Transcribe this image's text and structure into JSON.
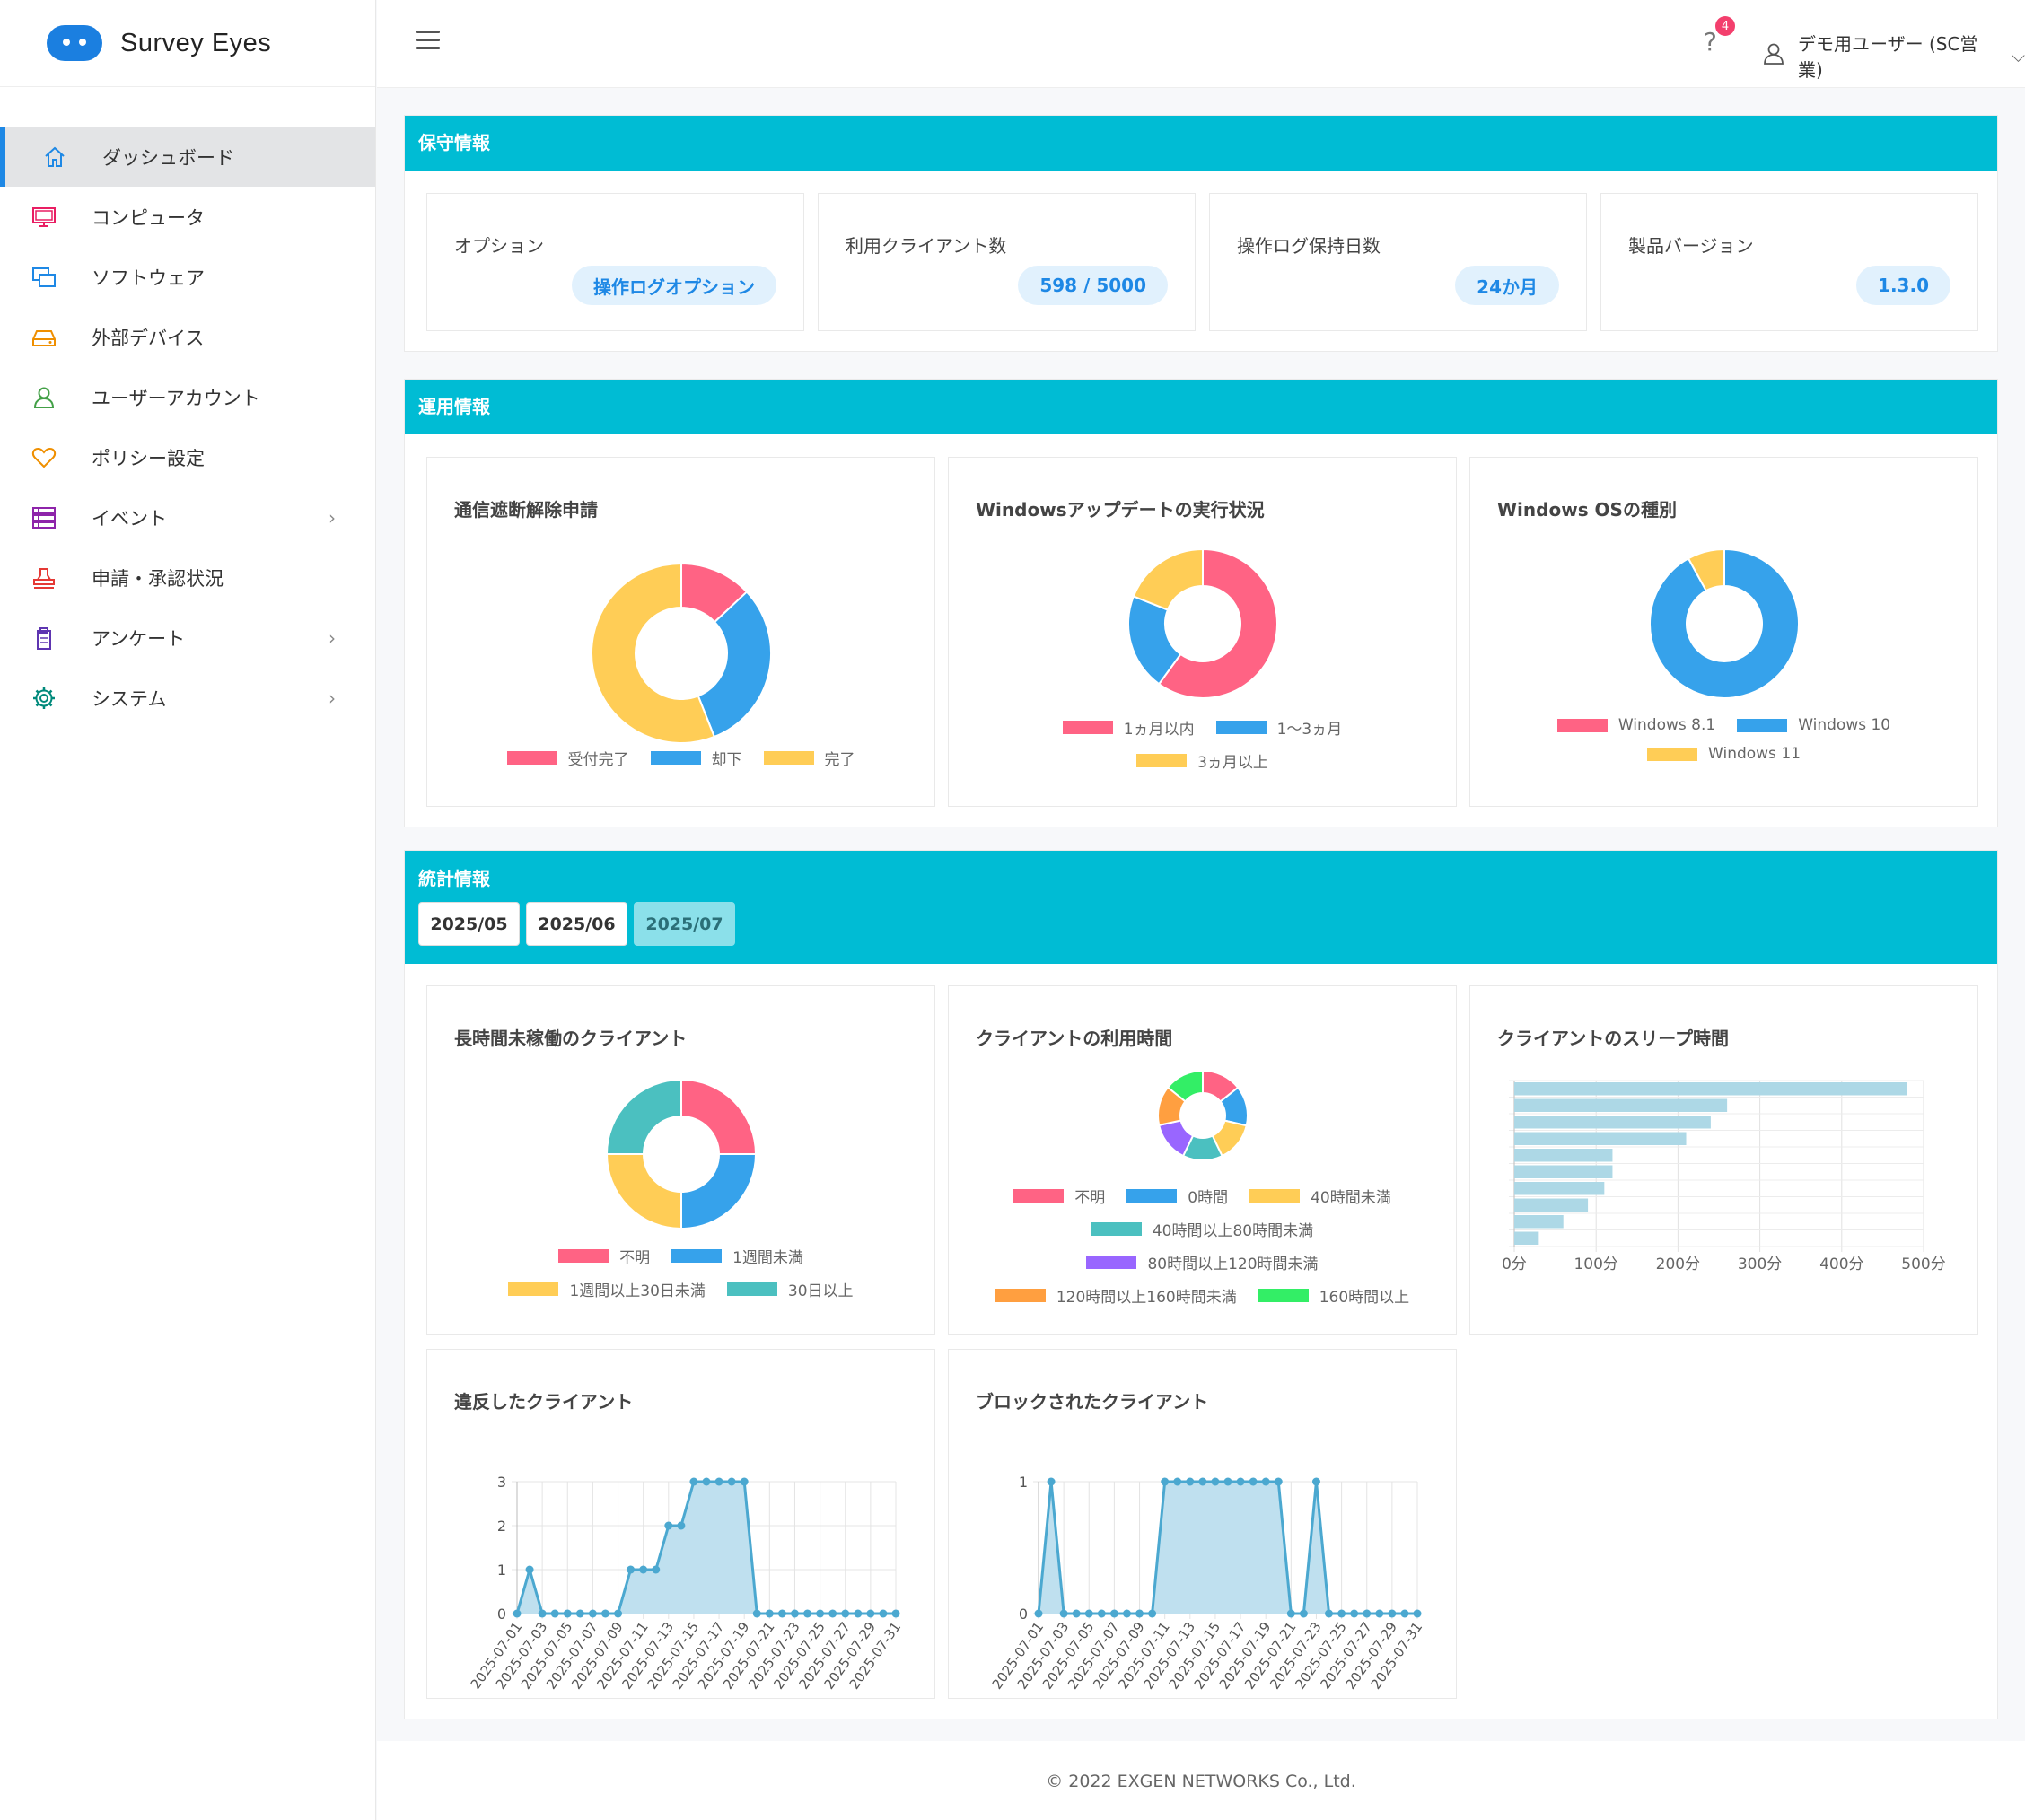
{
  "app": {
    "logo_text": "Survey Eyes"
  },
  "topbar": {
    "help_glyph": "?",
    "notification_count": "4",
    "user_name": "デモ用ユーザー (SC営業)"
  },
  "sidebar": {
    "items": [
      {
        "label": "ダッシュボード",
        "icon": "home-icon",
        "color": "#1e88e5"
      },
      {
        "label": "コンピュータ",
        "icon": "monitor-icon",
        "color": "#e91e63"
      },
      {
        "label": "ソフトウェア",
        "icon": "windows-icon",
        "color": "#1e88e5"
      },
      {
        "label": "外部デバイス",
        "icon": "drive-icon",
        "color": "#ef8f00"
      },
      {
        "label": "ユーザーアカウント",
        "icon": "user-icon",
        "color": "#43a047"
      },
      {
        "label": "ポリシー設定",
        "icon": "heart-icon",
        "color": "#ef8f00"
      },
      {
        "label": "イベント",
        "icon": "list-icon",
        "color": "#8e24aa"
      },
      {
        "label": "申請・承認状況",
        "icon": "stamp-icon",
        "color": "#e53935"
      },
      {
        "label": "アンケート",
        "icon": "clipboard-icon",
        "color": "#5e35b1"
      },
      {
        "label": "システム",
        "icon": "gear-icon",
        "color": "#00897b"
      }
    ]
  },
  "maintenance": {
    "title": "保守情報",
    "cards": [
      {
        "label": "オプション",
        "value": "操作ログオプション"
      },
      {
        "label": "利用クライアント数",
        "value": "598 / 5000"
      },
      {
        "label": "操作ログ保持日数",
        "value": "24か月"
      },
      {
        "label": "製品バージョン",
        "value": "1.3.0"
      }
    ]
  },
  "operations": {
    "title": "運用情報"
  },
  "statistics": {
    "title": "統計情報",
    "tabs": [
      "2025/05",
      "2025/06",
      "2025/07"
    ],
    "active_tab": "2025/07"
  },
  "footer": {
    "text": "© 2022 EXGEN NETWORKS Co., Ltd."
  },
  "chart_data": [
    {
      "id": "network-block",
      "type": "pie",
      "title": "通信遮断解除申請",
      "labels": [
        "受付完了",
        "却下",
        "完了"
      ],
      "values": [
        13,
        31,
        56
      ],
      "colors": [
        "#ff6384",
        "#36a2eb",
        "#ffcd56"
      ]
    },
    {
      "id": "windows-update",
      "type": "pie",
      "title": "Windowsアップデートの実行状況",
      "labels": [
        "1ヵ月以内",
        "1〜3ヵ月",
        "3ヵ月以上"
      ],
      "values": [
        60,
        21,
        19
      ],
      "colors": [
        "#ff6384",
        "#36a2eb",
        "#ffcd56"
      ]
    },
    {
      "id": "windows-os",
      "type": "pie",
      "title": "Windows OSの種別",
      "labels": [
        "Windows 8.1",
        "Windows 10",
        "Windows 11"
      ],
      "values": [
        0,
        92,
        8
      ],
      "colors": [
        "#ff6384",
        "#36a2eb",
        "#ffcd56"
      ]
    },
    {
      "id": "inactive-clients",
      "type": "pie",
      "title": "長時間未稼働のクライアント",
      "labels": [
        "不明",
        "1週間未満",
        "1週間以上30日未満",
        "30日以上"
      ],
      "values": [
        25,
        25,
        25,
        25
      ],
      "colors": [
        "#ff6384",
        "#36a2eb",
        "#ffcd56",
        "#4bc0c0"
      ]
    },
    {
      "id": "usage-time",
      "type": "pie",
      "title": "クライアントの利用時間",
      "labels": [
        "不明",
        "0時間",
        "40時間未満",
        "40時間以上80時間未満",
        "80時間以上120時間未満",
        "120時間以上160時間未満",
        "160時間以上"
      ],
      "values": [
        14.3,
        14.3,
        14.3,
        14.3,
        14.3,
        14.3,
        14.2
      ],
      "colors": [
        "#ff6384",
        "#36a2eb",
        "#ffcd56",
        "#4bc0c0",
        "#9966ff",
        "#ff9f40",
        "#33ee66"
      ]
    },
    {
      "id": "sleep-time",
      "type": "bar",
      "title": "クライアントのスリープ時間",
      "orientation": "horizontal",
      "values": [
        480,
        260,
        240,
        210,
        120,
        120,
        110,
        90,
        60,
        30
      ],
      "xticks": [
        "0分",
        "100分",
        "200分",
        "300分",
        "400分",
        "500分"
      ],
      "xlim": [
        0,
        500
      ],
      "color": "#add8e6"
    },
    {
      "id": "violations",
      "type": "area",
      "title": "違反したクライアント",
      "x": [
        "2025-07-01",
        "2025-07-02",
        "2025-07-03",
        "2025-07-04",
        "2025-07-05",
        "2025-07-06",
        "2025-07-07",
        "2025-07-08",
        "2025-07-09",
        "2025-07-10",
        "2025-07-11",
        "2025-07-12",
        "2025-07-13",
        "2025-07-14",
        "2025-07-15",
        "2025-07-16",
        "2025-07-17",
        "2025-07-18",
        "2025-07-19",
        "2025-07-20",
        "2025-07-21",
        "2025-07-22",
        "2025-07-23",
        "2025-07-24",
        "2025-07-25",
        "2025-07-26",
        "2025-07-27",
        "2025-07-28",
        "2025-07-29",
        "2025-07-30",
        "2025-07-31"
      ],
      "values": [
        0,
        1,
        0,
        0,
        0,
        0,
        0,
        0,
        0,
        1,
        1,
        1,
        2,
        2,
        3,
        3,
        3,
        3,
        3,
        0,
        0,
        0,
        0,
        0,
        0,
        0,
        0,
        0,
        0,
        0,
        0
      ],
      "yticks": [
        "0",
        "1",
        "2",
        "3"
      ],
      "ylim": [
        0,
        3
      ],
      "color": "#4ba8d0"
    },
    {
      "id": "blocked",
      "type": "area",
      "title": "ブロックされたクライアント",
      "x": [
        "2025-07-01",
        "2025-07-02",
        "2025-07-03",
        "2025-07-04",
        "2025-07-05",
        "2025-07-06",
        "2025-07-07",
        "2025-07-08",
        "2025-07-09",
        "2025-07-10",
        "2025-07-11",
        "2025-07-12",
        "2025-07-13",
        "2025-07-14",
        "2025-07-15",
        "2025-07-16",
        "2025-07-17",
        "2025-07-18",
        "2025-07-19",
        "2025-07-20",
        "2025-07-21",
        "2025-07-22",
        "2025-07-23",
        "2025-07-24",
        "2025-07-25",
        "2025-07-26",
        "2025-07-27",
        "2025-07-28",
        "2025-07-29",
        "2025-07-30",
        "2025-07-31"
      ],
      "values": [
        0,
        1,
        0,
        0,
        0,
        0,
        0,
        0,
        0,
        0,
        1,
        1,
        1,
        1,
        1,
        1,
        1,
        1,
        1,
        1,
        0,
        0,
        1,
        0,
        0,
        0,
        0,
        0,
        0,
        0,
        0
      ],
      "yticks": [
        "0",
        "1"
      ],
      "ylim": [
        0,
        1
      ],
      "color": "#4ba8d0"
    }
  ]
}
